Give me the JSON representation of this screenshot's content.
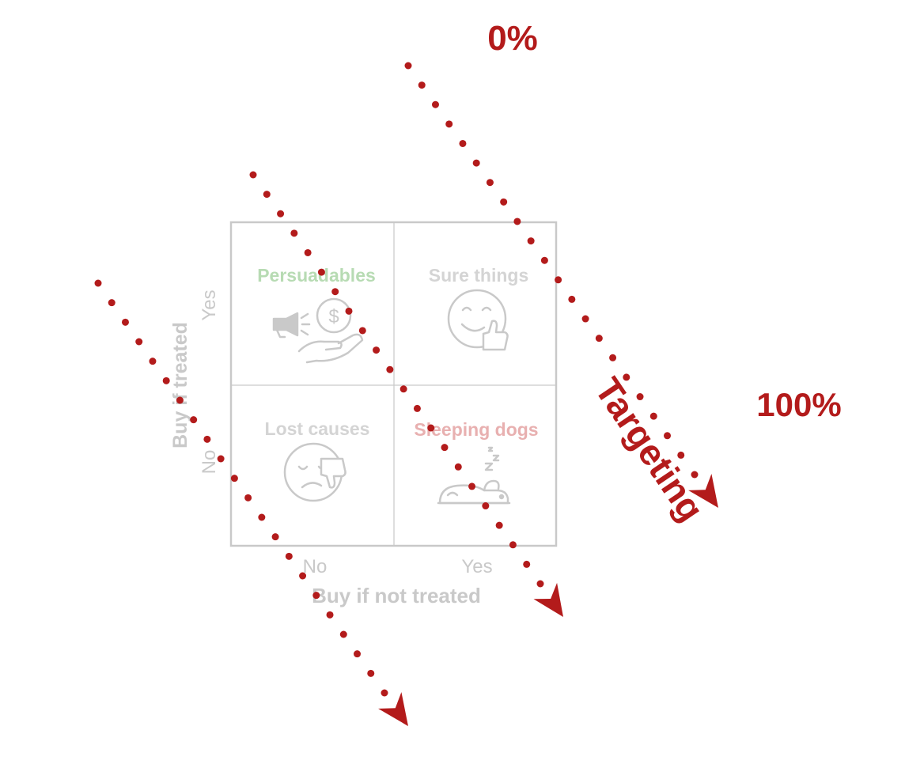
{
  "quadrant": {
    "top_left": "Persuadables",
    "top_right": "Sure things",
    "bottom_left": "Lost causes",
    "bottom_right": "Sleeping dogs",
    "top_left_color": "#b7dbb3",
    "bottom_right_color": "#e8b0b0",
    "neutral_color": "#c9c9c9"
  },
  "axes": {
    "y_label": "Buy if treated",
    "y_yes": "Yes",
    "y_no": "No",
    "x_label": "Buy if not treated",
    "x_no": "No",
    "x_yes": "Yes"
  },
  "icons": {
    "persuadables": "megaphone-coin-hand-icon",
    "sure_things": "smiley-thumbs-up-icon",
    "lost_causes": "sad-face-thumbs-down-icon",
    "sleeping_dogs": "sleeping-dog-icon"
  },
  "annotation": {
    "start": "0%",
    "end": "100%",
    "direction": "Targeting",
    "color": "#b31b1b"
  }
}
